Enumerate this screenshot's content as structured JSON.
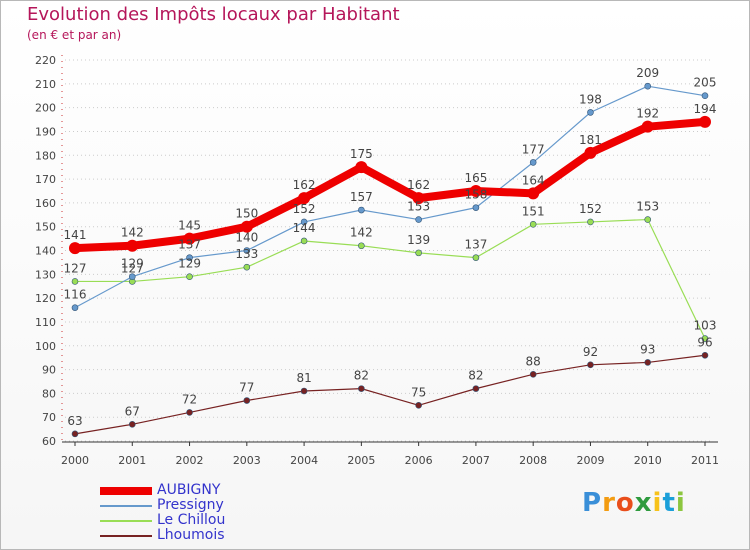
{
  "chart_data": {
    "type": "line",
    "title": "Evolution des Impôts locaux par Habitant",
    "subtitle": "(en € et par an)",
    "xlabel": "",
    "ylabel": "",
    "categories": [
      "2000",
      "2001",
      "2002",
      "2003",
      "2004",
      "2005",
      "2006",
      "2007",
      "2008",
      "2009",
      "2010",
      "2011"
    ],
    "ylim": [
      60,
      220
    ],
    "yticks": [
      60,
      70,
      80,
      90,
      100,
      110,
      120,
      130,
      140,
      150,
      160,
      170,
      180,
      190,
      200,
      210,
      220
    ],
    "grid": "horizontal dotted",
    "legend_position": "bottom-left",
    "series": [
      {
        "name": "AUBIGNY",
        "color": "#ee0000",
        "values": [
          141,
          142,
          145,
          150,
          162,
          175,
          162,
          165,
          164,
          181,
          192,
          194
        ]
      },
      {
        "name": "Pressigny",
        "color": "#6699cc",
        "values": [
          116,
          129,
          137,
          140,
          152,
          157,
          153,
          158,
          177,
          198,
          209,
          205
        ]
      },
      {
        "name": "Le Chillou",
        "color": "#99dd55",
        "values": [
          127,
          127,
          129,
          133,
          144,
          142,
          139,
          137,
          151,
          152,
          153,
          103
        ]
      },
      {
        "name": "Lhoumois",
        "color": "#772222",
        "values": [
          63,
          67,
          72,
          77,
          81,
          82,
          75,
          82,
          88,
          92,
          93,
          96
        ]
      }
    ]
  },
  "logo": {
    "letters": [
      "P",
      "r",
      "o",
      "x",
      "i",
      "t",
      "i"
    ],
    "colors": [
      "#3a8fd8",
      "#f39c12",
      "#e94e1b",
      "#2e9b3e",
      "#f7c21a",
      "#1b9fd9",
      "#8cc63f"
    ]
  }
}
